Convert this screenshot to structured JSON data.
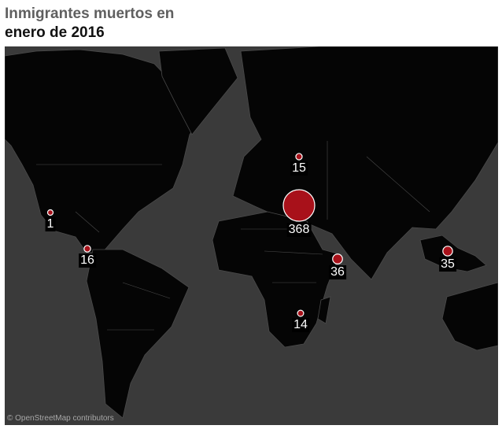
{
  "title": {
    "line1": "Inmigrantes muertos en",
    "line2": "enero de 2016"
  },
  "attribution": "© OpenStreetMap contributors",
  "map": {
    "basemap": "dark world map",
    "bubble_color": "#a8111a",
    "land_color": "#050505",
    "water_color": "#3a3a3a",
    "points": [
      {
        "region": "Mexico / US border",
        "value": "1"
      },
      {
        "region": "Central America",
        "value": "16"
      },
      {
        "region": "Eastern Europe",
        "value": "15"
      },
      {
        "region": "Mediterranean",
        "value": "368"
      },
      {
        "region": "Horn of Africa",
        "value": "36"
      },
      {
        "region": "Southern Africa",
        "value": "14"
      },
      {
        "region": "Southeast Asia",
        "value": "35"
      }
    ]
  }
}
